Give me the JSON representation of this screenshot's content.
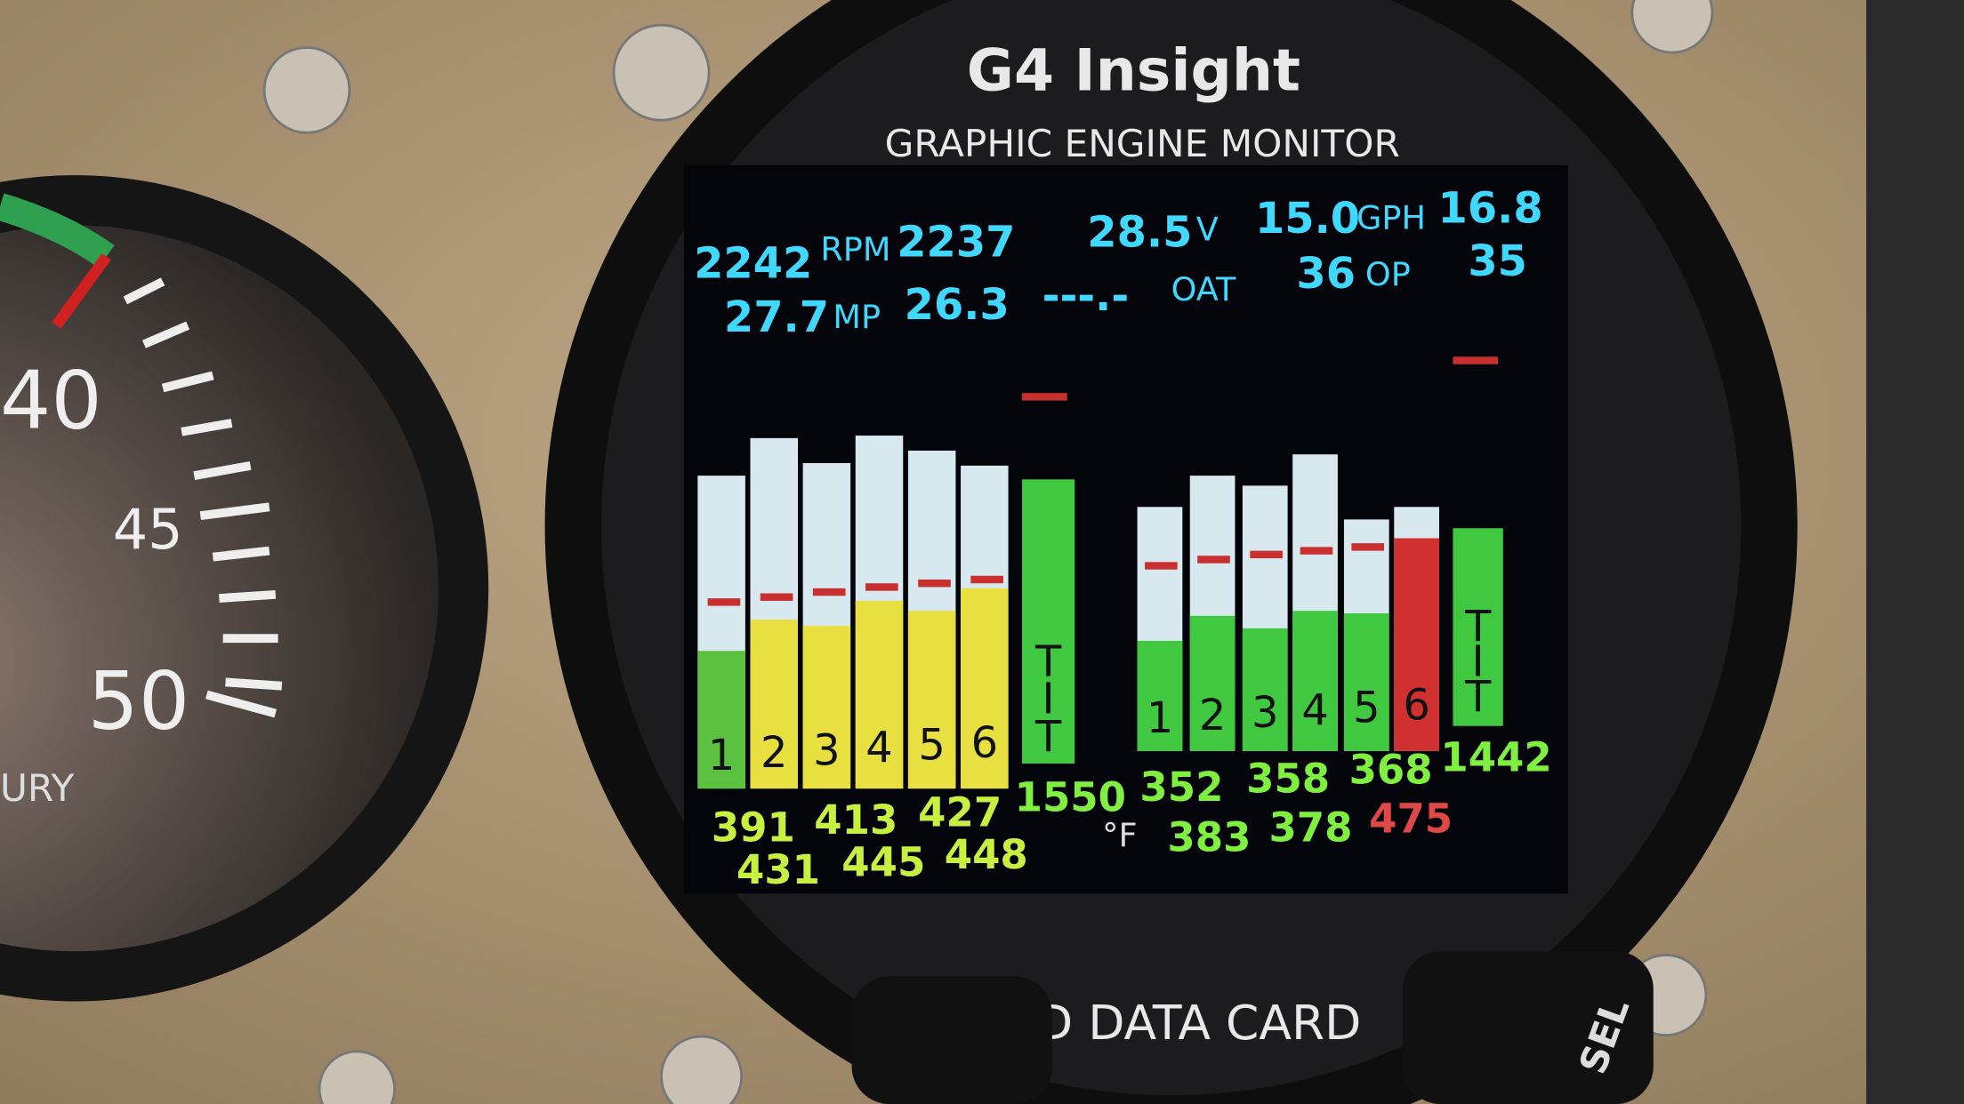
{
  "header": {
    "brand": "G4 Insight",
    "subtitle": "GRAPHIC ENGINE MONITOR",
    "card_slot": "SD DATA CARD",
    "knob": "SEL"
  },
  "gauge": {
    "marks": [
      "40",
      "45",
      "50"
    ],
    "caption": "URY"
  },
  "screen": {
    "row1": [
      "2242",
      "RPM",
      "2237",
      "28.5",
      "V",
      "15.0",
      "GPH",
      "16.8"
    ],
    "row2": [
      "27.7",
      "MP",
      "26.3",
      "---.-",
      "OAT",
      "36",
      "OP",
      "35"
    ],
    "left_bars": [
      "1",
      "2",
      "3",
      "4",
      "5",
      "6",
      "T\nI\nT"
    ],
    "right_bars": [
      "1",
      "2",
      "3",
      "4",
      "5",
      "6",
      "T\nI\nT"
    ],
    "bottom1": [
      "391",
      "413",
      "427",
      "1550",
      "352",
      "358",
      "368",
      "1442"
    ],
    "bottom2": [
      "431",
      "445",
      "448",
      "°F",
      "383",
      "378",
      "475"
    ]
  }
}
